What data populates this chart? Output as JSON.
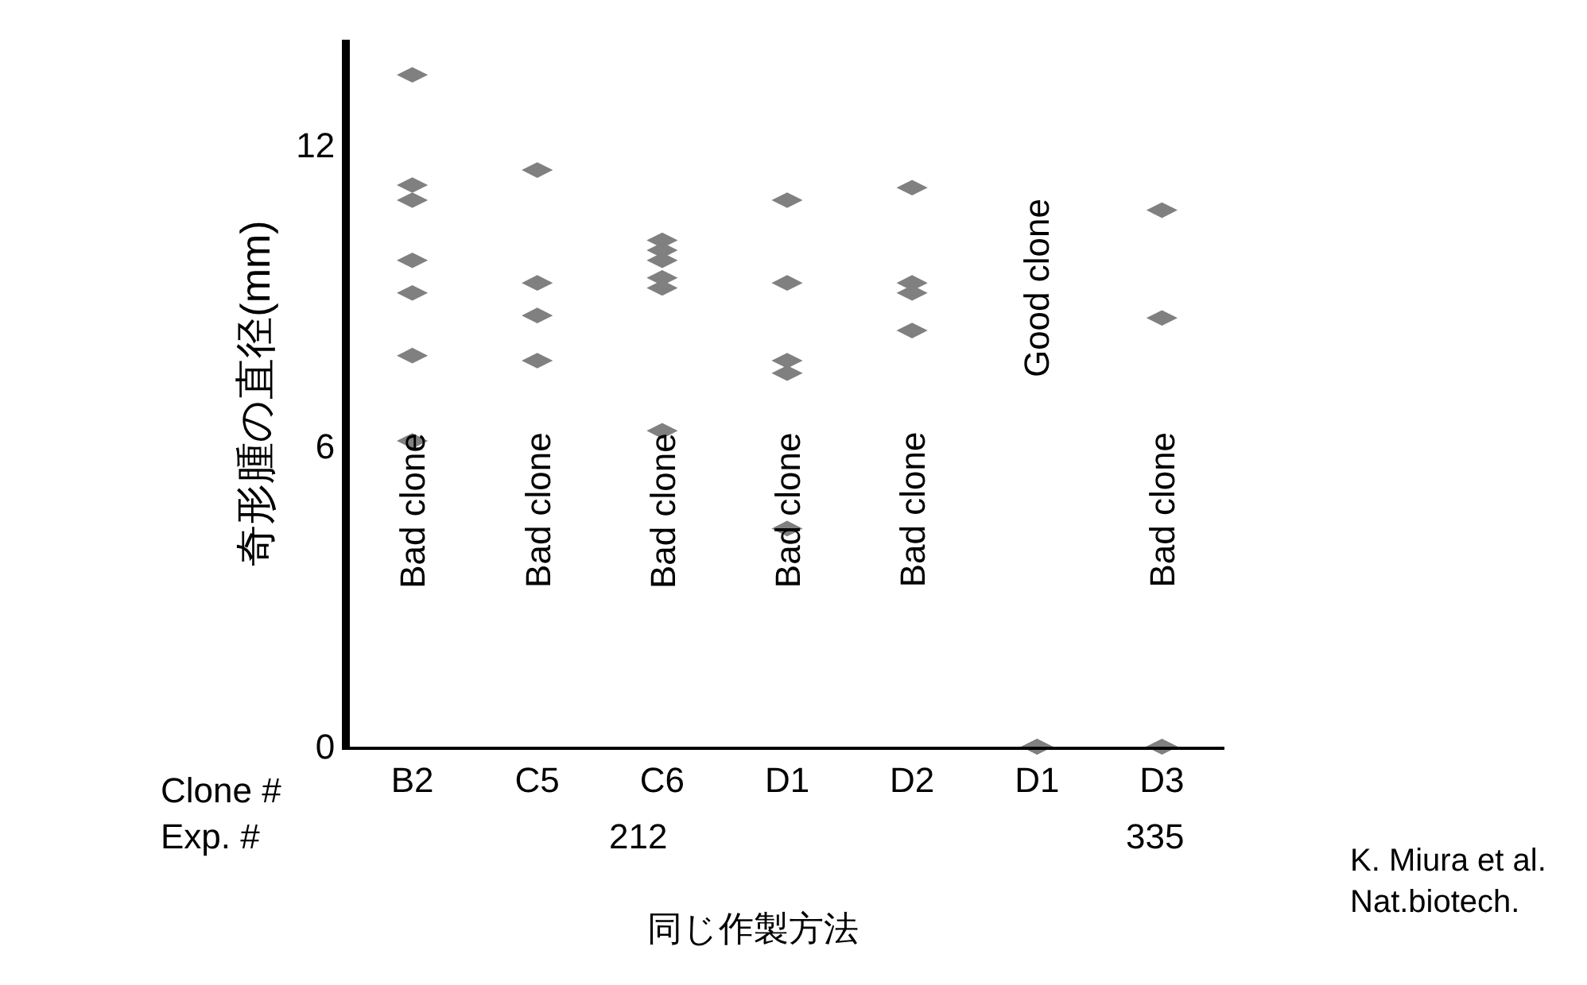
{
  "chart_data": {
    "type": "scatter",
    "ylabel": "奇形腫の直径(mm)",
    "categories": [
      "B2",
      "C5",
      "C6",
      "D1",
      "D2",
      "D1",
      "D3"
    ],
    "series": [
      {
        "color": "#808080",
        "values": [
          13.4,
          11.5,
          10.1,
          10.9,
          11.15,
          0,
          10.7
        ]
      },
      {
        "color": "#808080",
        "values": [
          11.2,
          9.25,
          9.9,
          9.25,
          9.25,
          0,
          8.55
        ]
      },
      {
        "color": "#808080",
        "values": [
          10.9,
          8.6,
          9.7,
          7.7,
          9.05,
          0,
          0
        ]
      },
      {
        "color": "#808080",
        "values": [
          9.7,
          7.7,
          9.35,
          7.45,
          8.3,
          0,
          0
        ]
      },
      {
        "color": "#808080",
        "values": [
          9.05,
          null,
          9.15,
          4.35,
          null,
          0,
          0
        ]
      },
      {
        "color": "#808080",
        "values": [
          7.8,
          null,
          6.3,
          null,
          null,
          null,
          null
        ]
      },
      {
        "color": "#808080",
        "values": [
          6.1,
          null,
          null,
          null,
          null,
          null,
          null
        ]
      }
    ],
    "ylim": [
      0,
      14.1
    ],
    "yticks": [
      0,
      6,
      12
    ],
    "marker": "diamond",
    "annotations": [
      "Bad clone",
      "Bad clone",
      "Bad clone",
      "Bad clone",
      "Bad clone",
      "Good clone",
      "Bad clone",
      "Clone #",
      "Exp. #",
      "212",
      "335",
      "同じ作製方法",
      "K. Miura et al.\nNat.biotech."
    ]
  }
}
